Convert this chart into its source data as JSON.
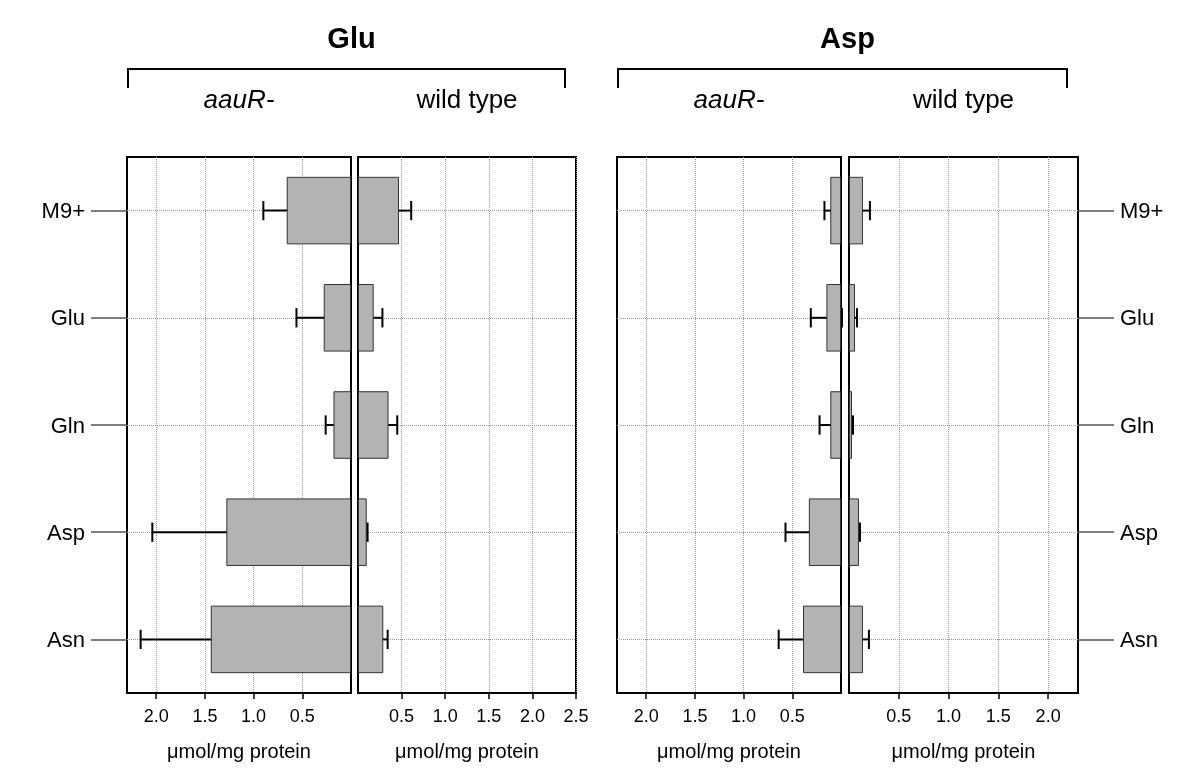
{
  "chart_data": [
    {
      "type": "bar",
      "orientation": "horizontal",
      "title": "Glu",
      "subtitle": "aauR-",
      "xlabel": "μmol/mg protein",
      "categories": [
        "M9+",
        "Glu",
        "Gln",
        "Asp",
        "Asn"
      ],
      "values": [
        0.66,
        0.28,
        0.18,
        1.28,
        1.44
      ],
      "errors": [
        0.24,
        0.28,
        0.08,
        0.76,
        0.72
      ],
      "color": "#b3b3b3",
      "xlim": [
        2.3,
        0
      ],
      "xticks": [
        {
          "value": 2,
          "label": "2.0"
        },
        {
          "value": 1.5,
          "label": "1.5"
        },
        {
          "value": 1,
          "label": "1.0"
        },
        {
          "value": 0.5,
          "label": "0.5"
        }
      ],
      "grid": true
    },
    {
      "type": "bar",
      "orientation": "horizontal",
      "subtitle": "wild type",
      "xlabel": "μmol/mg protein",
      "categories": [
        null,
        null,
        null,
        null,
        null
      ],
      "values": [
        0.47,
        0.18,
        0.35,
        0.1,
        0.29
      ],
      "errors": [
        0.14,
        0.1,
        0.1,
        0.01,
        0.05
      ],
      "color": "#b3b3b3",
      "xlim": [
        0,
        2.5
      ],
      "xticks": [
        {
          "value": 0.5,
          "label": "0.5"
        },
        {
          "value": 1,
          "label": "1.0"
        },
        {
          "value": 1.5,
          "label": "1.5"
        },
        {
          "value": 2,
          "label": "2.0"
        },
        {
          "value": 2.5,
          "label": "2.5"
        }
      ],
      "grid": true,
      "tick_labels": "x"
    },
    {
      "type": "bar",
      "orientation": "horizontal",
      "title": "Asp",
      "subtitle": "aauR-",
      "xlabel": "μmol/mg protein",
      "categories": [
        null,
        null,
        null,
        null,
        null
      ],
      "values": [
        0.11,
        0.15,
        0.11,
        0.33,
        0.39
      ],
      "errors": [
        0.06,
        0.16,
        0.11,
        0.24,
        0.25
      ],
      "color": "#b3b3b3",
      "xlim": [
        2.3,
        0
      ],
      "xticks": [
        {
          "value": 2,
          "label": "2.0"
        },
        {
          "value": 1.5,
          "label": "1.5"
        },
        {
          "value": 1,
          "label": "1.0"
        },
        {
          "value": 0.5,
          "label": "0.5"
        }
      ],
      "grid": true,
      "tick_labels": "x"
    },
    {
      "type": "bar",
      "orientation": "horizontal",
      "subtitle": "wild type",
      "xlabel": "μmol/mg protein",
      "categories": [
        "M9+",
        "Glu",
        "Gln",
        "Asp",
        "Asn"
      ],
      "values": [
        0.14,
        0.06,
        0.03,
        0.1,
        0.14
      ],
      "errors": [
        0.07,
        0.02,
        0.01,
        0.01,
        0.06
      ],
      "color": "#b3b3b3",
      "xlim": [
        0,
        2.3
      ],
      "xticks": [
        {
          "value": 0.5,
          "label": "0.5"
        },
        {
          "value": 1,
          "label": "1.0"
        },
        {
          "value": 1.5,
          "label": "1.5"
        },
        {
          "value": 2,
          "label": "2.0"
        }
      ],
      "grid": true
    }
  ]
}
